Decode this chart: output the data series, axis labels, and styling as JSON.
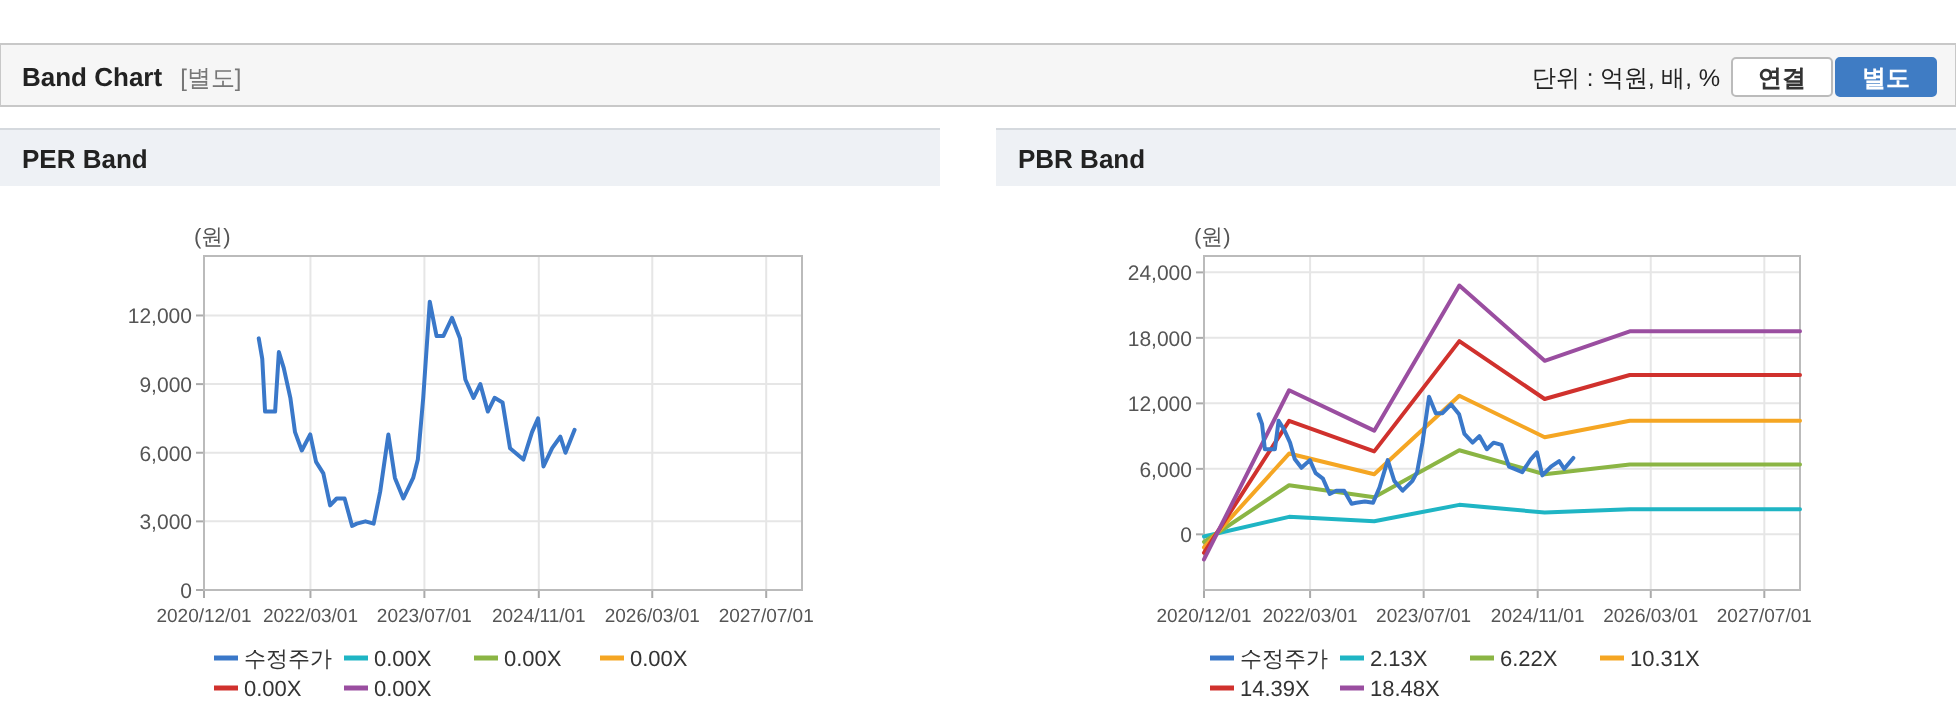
{
  "chart_data": [
    {
      "type": "other",
      "title": "Band Chart",
      "annotations": [
        "[별도]",
        "단위 : 억원, 배, %",
        "연결",
        "별도"
      ]
    },
    {
      "type": "line",
      "title": "PER Band",
      "ylabel": "(원)",
      "grid": true,
      "legend": "bottom",
      "xlim": [
        "2020-12-01",
        "2027-12-01"
      ],
      "xticks": [
        {
          "value": "2020-12-01",
          "label": "2020/12/01"
        },
        {
          "value": "2022-03-01",
          "label": "2022/03/01"
        },
        {
          "value": "2023-07-01",
          "label": "2023/07/01"
        },
        {
          "value": "2024-11-01",
          "label": "2024/11/01"
        },
        {
          "value": "2026-03-01",
          "label": "2026/03/01"
        },
        {
          "value": "2027-07-01",
          "label": "2027/07/01"
        }
      ],
      "ylim": [
        0,
        14600
      ],
      "yticks": [
        0,
        {
          "value": 3000,
          "label": "3,000"
        },
        {
          "value": 6000,
          "label": "6,000"
        },
        {
          "value": 9000,
          "label": "9,000"
        },
        {
          "value": 12000,
          "label": "12,000"
        }
      ],
      "series": [
        {
          "name": "수정주가",
          "color": "#3a78c9",
          "x": [
            "2021-07-23",
            "2021-08-07",
            "2021-08-19",
            "2021-10-01",
            "2021-10-17",
            "2021-11-07",
            "2021-12-05",
            "2021-12-25",
            "2022-01-23",
            "2022-02-28",
            "2022-03-25",
            "2022-04-25",
            "2022-05-24",
            "2022-06-21",
            "2022-07-25",
            "2022-08-26",
            "2022-09-15",
            "2022-10-22",
            "2022-11-26",
            "2022-12-24",
            "2023-01-28",
            "2023-02-25",
            "2023-04-02",
            "2023-05-14",
            "2023-06-03",
            "2023-06-26",
            "2023-07-24",
            "2023-08-22",
            "2023-09-20",
            "2023-10-27",
            "2023-11-30",
            "2023-12-23",
            "2024-01-27",
            "2024-02-25",
            "2024-03-28",
            "2024-04-26",
            "2024-05-30",
            "2024-07-01",
            "2024-08-27",
            "2024-10-03",
            "2024-10-29",
            "2024-11-21",
            "2024-12-28",
            "2025-02-01",
            "2025-02-23",
            "2025-04-03"
          ],
          "values": [
            11000,
            10100,
            7800,
            7800,
            10400,
            9700,
            8400,
            6900,
            6100,
            6800,
            5600,
            5100,
            3700,
            4000,
            4000,
            2800,
            2900,
            3000,
            2900,
            4300,
            6800,
            4900,
            4000,
            4900,
            5700,
            8400,
            12600,
            11100,
            11100,
            11900,
            11000,
            9200,
            8400,
            9000,
            7800,
            8400,
            8200,
            6200,
            5700,
            6900,
            7500,
            5400,
            6200,
            6700,
            6000,
            7000
          ]
        },
        {
          "name": "0.00X",
          "color": "#1fb5c4"
        },
        {
          "name": "0.00X",
          "color": "#8bb544"
        },
        {
          "name": "0.00X",
          "color": "#f5a623"
        },
        {
          "name": "0.00X",
          "color": "#d0312d"
        },
        {
          "name": "0.00X",
          "color": "#9a4ea0"
        }
      ]
    },
    {
      "type": "line",
      "title": "PBR Band",
      "ylabel": "(원)",
      "grid": true,
      "legend": "bottom",
      "xlim": [
        "2020-12-01",
        "2027-12-01"
      ],
      "xticks": [
        {
          "value": "2020-12-01",
          "label": "2020/12/01"
        },
        {
          "value": "2022-03-01",
          "label": "2022/03/01"
        },
        {
          "value": "2023-07-01",
          "label": "2023/07/01"
        },
        {
          "value": "2024-11-01",
          "label": "2024/11/01"
        },
        {
          "value": "2026-03-01",
          "label": "2026/03/01"
        },
        {
          "value": "2027-07-01",
          "label": "2027/07/01"
        }
      ],
      "ylim": [
        -5100,
        25500
      ],
      "yticks": [
        0,
        {
          "value": 6000,
          "label": "6,000"
        },
        {
          "value": 12000,
          "label": "12,000"
        },
        {
          "value": 18000,
          "label": "18,000"
        },
        {
          "value": 24000,
          "label": "24,000"
        }
      ],
      "series": [
        {
          "name": "수정주가",
          "color": "#3a78c9",
          "x": [
            "2021-07-23",
            "2021-08-07",
            "2021-08-19",
            "2021-10-01",
            "2021-10-17",
            "2021-11-07",
            "2021-12-05",
            "2021-12-25",
            "2022-01-23",
            "2022-02-28",
            "2022-03-25",
            "2022-04-25",
            "2022-05-24",
            "2022-06-21",
            "2022-07-25",
            "2022-08-26",
            "2022-09-15",
            "2022-10-22",
            "2022-11-26",
            "2022-12-24",
            "2023-01-28",
            "2023-02-25",
            "2023-04-02",
            "2023-05-14",
            "2023-06-03",
            "2023-06-26",
            "2023-07-24",
            "2023-08-22",
            "2023-09-20",
            "2023-10-27",
            "2023-11-30",
            "2023-12-23",
            "2024-01-27",
            "2024-02-25",
            "2024-03-28",
            "2024-04-26",
            "2024-05-30",
            "2024-07-01",
            "2024-08-27",
            "2024-10-03",
            "2024-10-29",
            "2024-11-21",
            "2024-12-28",
            "2025-02-01",
            "2025-02-23",
            "2025-04-03"
          ],
          "values": [
            11000,
            10100,
            7800,
            7800,
            10400,
            9700,
            8400,
            6900,
            6100,
            6800,
            5600,
            5100,
            3700,
            4000,
            4000,
            2800,
            2900,
            3000,
            2900,
            4300,
            6800,
            4900,
            4000,
            4900,
            5700,
            8400,
            12600,
            11100,
            11100,
            11900,
            11000,
            9200,
            8400,
            9000,
            7800,
            8400,
            8200,
            6200,
            5700,
            6900,
            7500,
            5400,
            6200,
            6700,
            6000,
            7000
          ]
        },
        {
          "name": "2.13X",
          "color": "#1fb5c4",
          "x": [
            "2020-12-01",
            "2021-12-01",
            "2022-12-01",
            "2023-12-01",
            "2024-12-01",
            "2025-12-01",
            "2027-12-01"
          ],
          "values": [
            -200,
            1600,
            1200,
            2700,
            2000,
            2300,
            2300
          ]
        },
        {
          "name": "6.22X",
          "color": "#8bb544",
          "x": [
            "2020-12-01",
            "2021-12-01",
            "2022-12-01",
            "2023-12-01",
            "2024-12-01",
            "2025-12-01",
            "2027-12-01"
          ],
          "values": [
            -700,
            4500,
            3400,
            7700,
            5500,
            6400,
            6400
          ]
        },
        {
          "name": "10.31X",
          "color": "#f5a623",
          "x": [
            "2020-12-01",
            "2021-12-01",
            "2022-12-01",
            "2023-12-01",
            "2024-12-01",
            "2025-12-01",
            "2027-12-01"
          ],
          "values": [
            -1200,
            7400,
            5500,
            12700,
            8900,
            10400,
            10400
          ]
        },
        {
          "name": "14.39X",
          "color": "#d0312d",
          "x": [
            "2020-12-01",
            "2021-12-01",
            "2022-12-01",
            "2023-12-01",
            "2024-12-01",
            "2025-12-01",
            "2027-12-01"
          ],
          "values": [
            -1700,
            10400,
            7600,
            17700,
            12400,
            14600,
            14600
          ]
        },
        {
          "name": "18.48X",
          "color": "#9a4ea0",
          "x": [
            "2020-12-01",
            "2021-12-01",
            "2022-12-01",
            "2023-12-01",
            "2024-12-01",
            "2025-12-01",
            "2027-12-01"
          ],
          "values": [
            -2300,
            13200,
            9500,
            22800,
            15900,
            18600,
            18600
          ]
        }
      ]
    }
  ]
}
